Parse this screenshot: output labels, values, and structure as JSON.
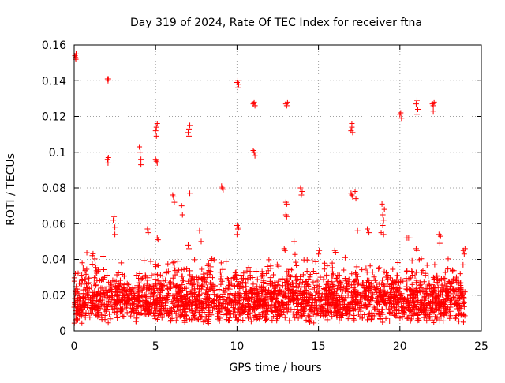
{
  "chart_data": {
    "type": "scatter",
    "title": "Day 319 of 2024, Rate Of TEC Index for receiver ftna",
    "xlabel": "GPS time / hours",
    "ylabel": "ROTI / TECUs",
    "xlim": [
      0,
      25
    ],
    "ylim": [
      0,
      0.16
    ],
    "xticks": [
      0,
      5,
      10,
      15,
      20,
      25
    ],
    "yticks": [
      0,
      0.02,
      0.04,
      0.06,
      0.08,
      0.1,
      0.12,
      0.14,
      0.16
    ],
    "xtick_labels": [
      "0",
      "5",
      "10",
      "15",
      "20",
      "25"
    ],
    "ytick_labels": [
      "0",
      "0.02",
      "0.04",
      "0.06",
      "0.08",
      "0.1",
      "0.12",
      "0.14",
      "0.16"
    ],
    "grid": true,
    "marker": "+",
    "color": "#ff0000",
    "dense_band": {
      "x_range": [
        0,
        24
      ],
      "y_range": [
        0.004,
        0.04
      ],
      "typical": 0.015
    },
    "series": [
      {
        "name": "ROTI",
        "points": [
          [
            0.05,
            0.154
          ],
          [
            0.08,
            0.153
          ],
          [
            0.1,
            0.152
          ],
          [
            0.12,
            0.155
          ],
          [
            2.05,
            0.141
          ],
          [
            2.08,
            0.14
          ],
          [
            2.1,
            0.141
          ],
          [
            2.05,
            0.096
          ],
          [
            2.08,
            0.094
          ],
          [
            2.1,
            0.097
          ],
          [
            2.4,
            0.062
          ],
          [
            2.45,
            0.064
          ],
          [
            2.5,
            0.058
          ],
          [
            2.5,
            0.054
          ],
          [
            4.0,
            0.103
          ],
          [
            4.05,
            0.1
          ],
          [
            4.1,
            0.096
          ],
          [
            4.1,
            0.093
          ],
          [
            4.5,
            0.057
          ],
          [
            4.55,
            0.055
          ],
          [
            5.0,
            0.096
          ],
          [
            5.05,
            0.095
          ],
          [
            5.1,
            0.094
          ],
          [
            5.0,
            0.112
          ],
          [
            5.05,
            0.114
          ],
          [
            5.1,
            0.116
          ],
          [
            5.05,
            0.109
          ],
          [
            5.1,
            0.052
          ],
          [
            5.15,
            0.051
          ],
          [
            6.05,
            0.076
          ],
          [
            6.1,
            0.075
          ],
          [
            6.15,
            0.072
          ],
          [
            6.6,
            0.07
          ],
          [
            6.65,
            0.065
          ],
          [
            7.0,
            0.111
          ],
          [
            7.05,
            0.113
          ],
          [
            7.1,
            0.115
          ],
          [
            7.05,
            0.109
          ],
          [
            7.1,
            0.077
          ],
          [
            7.0,
            0.048
          ],
          [
            7.05,
            0.046
          ],
          [
            7.7,
            0.056
          ],
          [
            7.8,
            0.05
          ],
          [
            9.05,
            0.081
          ],
          [
            9.1,
            0.08
          ],
          [
            9.15,
            0.079
          ],
          [
            10.0,
            0.139
          ],
          [
            10.05,
            0.14
          ],
          [
            10.1,
            0.138
          ],
          [
            10.05,
            0.136
          ],
          [
            10.0,
            0.059
          ],
          [
            10.05,
            0.057
          ],
          [
            10.1,
            0.058
          ],
          [
            10.0,
            0.054
          ],
          [
            11.0,
            0.127
          ],
          [
            11.05,
            0.128
          ],
          [
            11.1,
            0.126
          ],
          [
            11.0,
            0.101
          ],
          [
            11.05,
            0.1
          ],
          [
            11.1,
            0.098
          ],
          [
            12.9,
            0.046
          ],
          [
            12.95,
            0.045
          ],
          [
            13.0,
            0.127
          ],
          [
            13.05,
            0.126
          ],
          [
            13.1,
            0.128
          ],
          [
            13.0,
            0.072
          ],
          [
            13.05,
            0.071
          ],
          [
            13.0,
            0.065
          ],
          [
            13.05,
            0.064
          ],
          [
            13.5,
            0.05
          ],
          [
            13.9,
            0.08
          ],
          [
            14.0,
            0.078
          ],
          [
            13.95,
            0.076
          ],
          [
            15.05,
            0.045
          ],
          [
            15.0,
            0.043
          ],
          [
            16.0,
            0.045
          ],
          [
            16.05,
            0.044
          ],
          [
            17.0,
            0.112
          ],
          [
            17.05,
            0.114
          ],
          [
            17.1,
            0.111
          ],
          [
            17.05,
            0.116
          ],
          [
            17.0,
            0.077
          ],
          [
            17.05,
            0.076
          ],
          [
            17.1,
            0.075
          ],
          [
            17.25,
            0.078
          ],
          [
            17.3,
            0.074
          ],
          [
            17.4,
            0.056
          ],
          [
            18.0,
            0.057
          ],
          [
            18.1,
            0.055
          ],
          [
            18.9,
            0.071
          ],
          [
            18.95,
            0.065
          ],
          [
            19.0,
            0.062
          ],
          [
            18.85,
            0.055
          ],
          [
            18.95,
            0.059
          ],
          [
            19.05,
            0.068
          ],
          [
            19.0,
            0.054
          ],
          [
            20.0,
            0.121
          ],
          [
            20.05,
            0.122
          ],
          [
            20.1,
            0.119
          ],
          [
            20.4,
            0.052
          ],
          [
            20.5,
            0.052
          ],
          [
            20.6,
            0.052
          ],
          [
            21.0,
            0.127
          ],
          [
            21.05,
            0.129
          ],
          [
            21.1,
            0.124
          ],
          [
            21.05,
            0.121
          ],
          [
            21.0,
            0.046
          ],
          [
            21.05,
            0.045
          ],
          [
            22.0,
            0.127
          ],
          [
            22.05,
            0.126
          ],
          [
            22.1,
            0.128
          ],
          [
            22.05,
            0.123
          ],
          [
            22.4,
            0.054
          ],
          [
            22.5,
            0.053
          ],
          [
            22.45,
            0.049
          ],
          [
            23.9,
            0.045
          ],
          [
            23.95,
            0.043
          ],
          [
            24.0,
            0.046
          ]
        ]
      }
    ]
  }
}
